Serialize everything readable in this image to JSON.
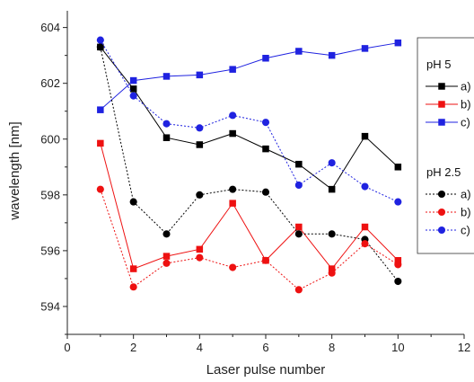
{
  "chart_data": {
    "type": "line",
    "title": "",
    "xlabel": "Laser pulse number",
    "ylabel": "wavelength [nm]",
    "xlim": [
      0,
      12
    ],
    "ylim": [
      593,
      604.6
    ],
    "x_ticks": [
      0,
      2,
      4,
      6,
      8,
      10,
      12
    ],
    "y_ticks": [
      594,
      596,
      598,
      600,
      602,
      604
    ],
    "x_tick_labels": [
      "0",
      "2",
      "4",
      "6",
      "8",
      "10",
      "12"
    ],
    "y_tick_labels": [
      "594",
      "596",
      "598",
      "600",
      "602",
      "604"
    ],
    "grid": false,
    "legend_position": "right",
    "legend_groups": [
      {
        "title": "pH 5",
        "entries": [
          "a)",
          "b)",
          "c)"
        ]
      },
      {
        "title": "pH 2.5",
        "entries": [
          "a)",
          "b)",
          "c)"
        ]
      }
    ],
    "x": [
      1,
      2,
      3,
      4,
      5,
      6,
      7,
      8,
      9,
      10
    ],
    "series": [
      {
        "group": "pH 5",
        "label": "a)",
        "color": "#000000",
        "marker": "square",
        "dash": "solid",
        "values": [
          603.3,
          601.8,
          600.05,
          599.8,
          600.2,
          599.65,
          599.1,
          598.2,
          600.1,
          599.0
        ]
      },
      {
        "group": "pH 5",
        "label": "b)",
        "color": "#ee1111",
        "marker": "square",
        "dash": "solid",
        "values": [
          599.85,
          595.35,
          595.8,
          596.05,
          597.7,
          595.65,
          596.85,
          595.35,
          596.85,
          595.65
        ]
      },
      {
        "group": "pH 5",
        "label": "c)",
        "color": "#1f22e0",
        "marker": "square",
        "dash": "solid",
        "values": [
          601.05,
          602.1,
          602.25,
          602.3,
          602.5,
          602.9,
          603.15,
          603.0,
          603.25,
          603.45
        ]
      },
      {
        "group": "pH 2.5",
        "label": "a)",
        "color": "#000000",
        "marker": "circle",
        "dash": "dotted",
        "values": [
          603.3,
          597.75,
          596.6,
          598.0,
          598.2,
          598.1,
          596.6,
          596.6,
          596.4,
          594.9
        ]
      },
      {
        "group": "pH 2.5",
        "label": "b)",
        "color": "#ee1111",
        "marker": "circle",
        "dash": "dotted",
        "values": [
          598.2,
          594.7,
          595.55,
          595.75,
          595.4,
          595.65,
          594.6,
          595.2,
          596.25,
          595.5
        ]
      },
      {
        "group": "pH 2.5",
        "label": "c)",
        "color": "#1f22e0",
        "marker": "circle",
        "dash": "dotted",
        "values": [
          603.55,
          601.55,
          600.55,
          600.4,
          600.85,
          600.6,
          598.35,
          599.15,
          598.3,
          597.75
        ]
      }
    ]
  }
}
